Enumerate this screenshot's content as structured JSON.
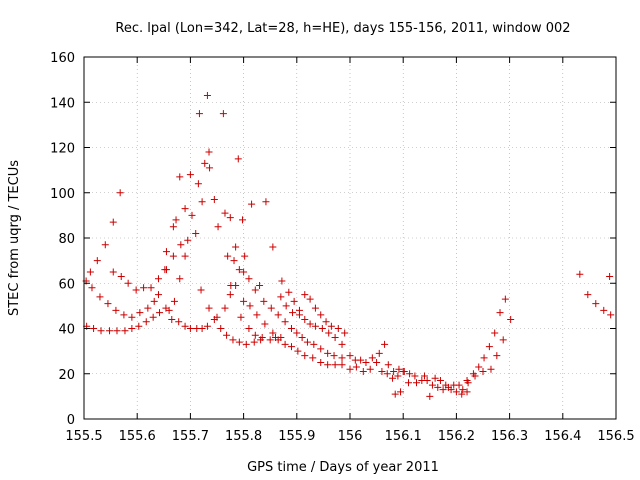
{
  "chart_data": {
    "type": "scatter",
    "title": "Rec. lpal (Lon=342, Lat=28, h=HE), days 155-156, 2011, window 002",
    "xlabel": "GPS time / Days of year 2011",
    "ylabel": "STEC from uqrg / TECUs",
    "xlim": [
      155.5,
      156.5
    ],
    "ylim": [
      0,
      160
    ],
    "xticks": [
      155.5,
      155.6,
      155.7,
      155.8,
      155.9,
      156.0,
      156.1,
      156.2,
      156.3,
      156.4,
      156.5
    ],
    "xtick_labels": [
      "155.5",
      "155.6",
      "155.7",
      "155.8",
      "155.9",
      "156",
      "156.1",
      "156.2",
      "156.3",
      "156.4",
      "156.5"
    ],
    "yticks": [
      0,
      20,
      40,
      60,
      80,
      100,
      120,
      140,
      160
    ],
    "ytick_labels": [
      "0",
      "20",
      "40",
      "60",
      "80",
      "100",
      "120",
      "140",
      "160"
    ],
    "grid": true,
    "marker": "+",
    "color": "#cc0000",
    "points": [
      [
        155.504,
        61
      ],
      [
        155.515,
        58
      ],
      [
        155.53,
        54
      ],
      [
        155.545,
        51
      ],
      [
        155.56,
        48
      ],
      [
        155.575,
        46
      ],
      [
        155.59,
        45
      ],
      [
        155.605,
        47
      ],
      [
        155.62,
        49
      ],
      [
        155.632,
        52
      ],
      [
        155.512,
        65
      ],
      [
        155.525,
        70
      ],
      [
        155.54,
        77
      ],
      [
        155.555,
        87
      ],
      [
        155.568,
        100
      ],
      [
        155.555,
        65
      ],
      [
        155.57,
        63
      ],
      [
        155.583,
        60
      ],
      [
        155.598,
        57
      ],
      [
        155.612,
        58
      ],
      [
        155.626,
        58
      ],
      [
        155.64,
        62
      ],
      [
        155.652,
        66
      ],
      [
        155.505,
        41
      ],
      [
        155.518,
        40
      ],
      [
        155.532,
        39
      ],
      [
        155.548,
        39
      ],
      [
        155.562,
        39
      ],
      [
        155.577,
        39
      ],
      [
        155.59,
        40
      ],
      [
        155.603,
        41
      ],
      [
        155.617,
        43
      ],
      [
        155.63,
        45
      ],
      [
        155.642,
        47
      ],
      [
        155.654,
        49
      ],
      [
        155.64,
        55
      ],
      [
        155.655,
        66
      ],
      [
        155.668,
        72
      ],
      [
        155.682,
        77
      ],
      [
        155.695,
        79
      ],
      [
        155.71,
        82
      ],
      [
        155.722,
        96
      ],
      [
        155.736,
        111
      ],
      [
        155.66,
        48
      ],
      [
        155.67,
        52
      ],
      [
        155.68,
        62
      ],
      [
        155.69,
        72
      ],
      [
        155.703,
        90
      ],
      [
        155.715,
        104
      ],
      [
        155.727,
        113
      ],
      [
        155.655,
        74
      ],
      [
        155.668,
        85
      ],
      [
        155.673,
        88
      ],
      [
        155.68,
        107
      ],
      [
        155.69,
        93
      ],
      [
        155.7,
        108
      ],
      [
        155.717,
        135
      ],
      [
        155.732,
        143
      ],
      [
        155.735,
        118
      ],
      [
        155.762,
        135
      ],
      [
        155.776,
        59
      ],
      [
        155.665,
        44
      ],
      [
        155.678,
        43
      ],
      [
        155.69,
        41
      ],
      [
        155.7,
        40
      ],
      [
        155.712,
        40
      ],
      [
        155.722,
        40
      ],
      [
        155.732,
        41
      ],
      [
        155.745,
        44
      ],
      [
        155.757,
        40
      ],
      [
        155.768,
        37
      ],
      [
        155.78,
        35
      ],
      [
        155.792,
        34
      ],
      [
        155.805,
        33
      ],
      [
        155.82,
        34
      ],
      [
        155.832,
        35
      ],
      [
        155.745,
        97
      ],
      [
        155.752,
        85
      ],
      [
        155.765,
        91
      ],
      [
        155.775,
        89
      ],
      [
        155.785,
        76
      ],
      [
        155.79,
        115
      ],
      [
        155.798,
        88
      ],
      [
        155.802,
        72
      ],
      [
        155.815,
        95
      ],
      [
        155.83,
        59
      ],
      [
        155.842,
        96
      ],
      [
        155.855,
        76
      ],
      [
        155.72,
        57
      ],
      [
        155.735,
        49
      ],
      [
        155.75,
        45
      ],
      [
        155.765,
        49
      ],
      [
        155.775,
        55
      ],
      [
        155.785,
        59
      ],
      [
        155.8,
        52
      ],
      [
        155.812,
        50
      ],
      [
        155.825,
        46
      ],
      [
        155.84,
        42
      ],
      [
        155.855,
        38
      ],
      [
        155.87,
        36
      ],
      [
        155.77,
        72
      ],
      [
        155.782,
        70
      ],
      [
        155.792,
        66
      ],
      [
        155.8,
        65
      ],
      [
        155.81,
        62
      ],
      [
        155.822,
        57
      ],
      [
        155.838,
        52
      ],
      [
        155.852,
        49
      ],
      [
        155.865,
        46
      ],
      [
        155.878,
        43
      ],
      [
        155.89,
        40
      ],
      [
        155.795,
        45
      ],
      [
        155.81,
        40
      ],
      [
        155.822,
        37
      ],
      [
        155.835,
        36
      ],
      [
        155.85,
        35
      ],
      [
        155.865,
        35
      ],
      [
        155.878,
        33
      ],
      [
        155.89,
        32
      ],
      [
        155.902,
        30
      ],
      [
        155.915,
        28
      ],
      [
        155.93,
        27
      ],
      [
        155.945,
        25
      ],
      [
        155.958,
        24
      ],
      [
        155.972,
        24
      ],
      [
        155.985,
        24
      ],
      [
        155.86,
        36
      ],
      [
        155.872,
        61
      ],
      [
        155.885,
        56
      ],
      [
        155.895,
        52
      ],
      [
        155.905,
        46
      ],
      [
        155.915,
        44
      ],
      [
        155.925,
        42
      ],
      [
        155.935,
        41
      ],
      [
        155.948,
        40
      ],
      [
        155.96,
        38
      ],
      [
        155.972,
        36
      ],
      [
        155.985,
        33
      ],
      [
        155.87,
        54
      ],
      [
        155.88,
        50
      ],
      [
        155.892,
        47
      ],
      [
        155.905,
        48
      ],
      [
        155.915,
        55
      ],
      [
        155.925,
        53
      ],
      [
        155.935,
        49
      ],
      [
        155.945,
        46
      ],
      [
        155.955,
        43
      ],
      [
        155.965,
        41
      ],
      [
        155.978,
        40
      ],
      [
        155.99,
        38
      ],
      [
        155.9,
        38
      ],
      [
        155.91,
        36
      ],
      [
        155.92,
        34
      ],
      [
        155.932,
        33
      ],
      [
        155.945,
        31
      ],
      [
        155.958,
        29
      ],
      [
        155.97,
        28
      ],
      [
        155.985,
        27
      ],
      [
        156.0,
        28
      ],
      [
        156.01,
        26
      ],
      [
        156.02,
        26
      ],
      [
        156.03,
        25
      ],
      [
        156.042,
        27
      ],
      [
        156.055,
        29
      ],
      [
        156.065,
        33
      ],
      [
        156.072,
        24
      ],
      [
        156.082,
        21
      ],
      [
        156.092,
        22
      ],
      [
        156.102,
        21
      ],
      [
        156.112,
        20
      ],
      [
        156.122,
        19
      ],
      [
        156.0,
        22
      ],
      [
        156.012,
        23
      ],
      [
        156.025,
        21
      ],
      [
        156.038,
        22
      ],
      [
        156.05,
        25
      ],
      [
        156.06,
        21
      ],
      [
        156.07,
        20
      ],
      [
        156.08,
        18
      ],
      [
        156.09,
        19
      ],
      [
        156.1,
        21
      ],
      [
        156.085,
        11
      ],
      [
        156.095,
        12
      ],
      [
        156.11,
        16
      ],
      [
        156.125,
        16
      ],
      [
        156.135,
        17
      ],
      [
        156.145,
        17
      ],
      [
        156.155,
        15
      ],
      [
        156.165,
        14
      ],
      [
        156.175,
        13
      ],
      [
        156.185,
        14
      ],
      [
        156.195,
        15
      ],
      [
        156.205,
        15
      ],
      [
        156.14,
        19
      ],
      [
        156.15,
        10
      ],
      [
        156.16,
        18
      ],
      [
        156.17,
        17
      ],
      [
        156.18,
        15
      ],
      [
        156.19,
        13
      ],
      [
        156.2,
        12
      ],
      [
        156.21,
        11
      ],
      [
        156.22,
        12
      ],
      [
        156.212,
        13
      ],
      [
        156.222,
        16
      ],
      [
        156.232,
        20
      ],
      [
        156.242,
        23
      ],
      [
        156.252,
        27
      ],
      [
        156.262,
        32
      ],
      [
        156.272,
        38
      ],
      [
        156.282,
        47
      ],
      [
        156.292,
        53
      ],
      [
        156.302,
        44
      ],
      [
        156.22,
        17
      ],
      [
        156.235,
        19
      ],
      [
        156.25,
        21
      ],
      [
        156.265,
        22
      ],
      [
        156.276,
        28
      ],
      [
        156.288,
        35
      ],
      [
        156.432,
        64
      ],
      [
        156.447,
        55
      ],
      [
        156.462,
        51
      ],
      [
        156.477,
        48
      ],
      [
        156.488,
        63
      ],
      [
        156.49,
        46
      ]
    ]
  }
}
